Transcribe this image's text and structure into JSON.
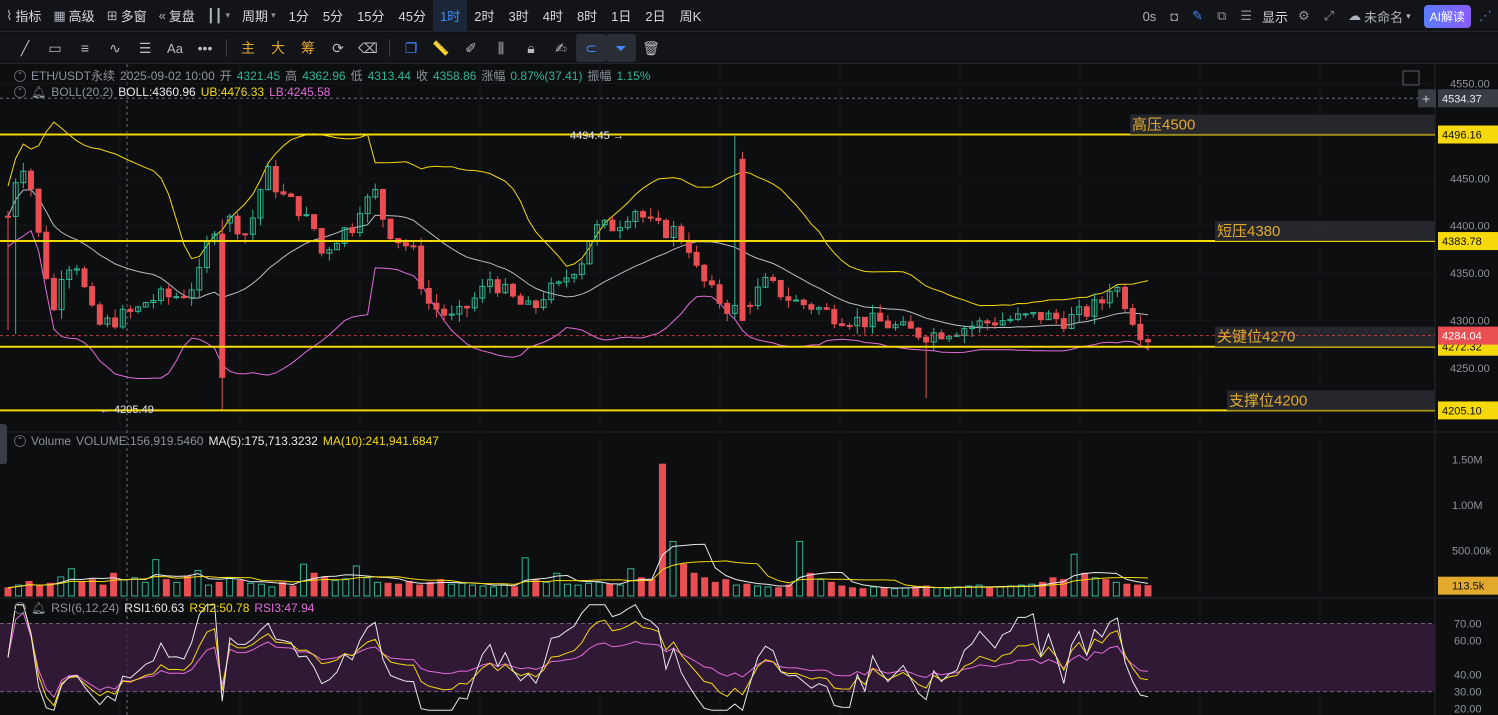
{
  "topbar": {
    "indicators": "指标",
    "advanced": "高级",
    "multi_window": "多窗",
    "replay": "复盘",
    "candle_type_icon": "candlestick-icon",
    "period": "周期",
    "timeframes": [
      "1分",
      "5分",
      "15分",
      "45分",
      "1时",
      "2时",
      "3时",
      "4时",
      "8时",
      "1日",
      "2日",
      "周K"
    ],
    "active_timeframe": "1时",
    "countdown": "0s",
    "display": "显示",
    "layout_name": "未命名",
    "ai_button": "AI解读"
  },
  "legend": {
    "symbol": "ETH/USDT永续",
    "time": "2025-09-02 10:00",
    "open_label": "开",
    "open": "4321.45",
    "high_label": "高",
    "high": "4362.96",
    "low_label": "低",
    "low": "4313.44",
    "close_label": "收",
    "close": "4358.86",
    "change_label": "涨幅",
    "change": "0.87%(37.41)",
    "amplitude_label": "振幅",
    "amplitude": "1.15%",
    "boll_name": "BOLL(20,2)",
    "boll": "BOLL:4360.96",
    "ub": "UB:4476.33",
    "lb": "LB:4245.58",
    "volume_name": "Volume",
    "volume": "VOLUME:156,919.5460",
    "vol_ma5": "MA(5):175,713.3232",
    "vol_ma10": "MA(10):241,941.6847",
    "rsi_name": "RSI(6,12,24)",
    "rsi1": "RSI1:60.63",
    "rsi2": "RSI2:50.78",
    "rsi3": "RSI3:47.94"
  },
  "colors": {
    "up": "#2fb592",
    "down": "#e94e53",
    "level_line": "#f5d90a",
    "boll_mid": "#e8e9ec",
    "boll_ub": "#f5d90a",
    "boll_lb": "#e26bd9",
    "rsi_band": "#3c1d40",
    "last_price_tag": "#e94e53",
    "level_tag": "#f5d90a"
  },
  "chart_data": {
    "type": "candlestick",
    "symbol": "ETH/USDT",
    "interval": "1h",
    "price_ylim": [
      4195,
      4560
    ],
    "price_ticks": [
      4250,
      4300,
      4350,
      4400,
      4450,
      4500,
      4550
    ],
    "price_tick_labels": [
      "4250.00",
      "4300.00",
      "4350.00",
      "4400.00",
      "4450.00",
      "4500.00",
      "4550.00"
    ],
    "volume_ylim": [
      0,
      1650000
    ],
    "volume_ticks": [
      500000,
      1000000,
      1500000
    ],
    "volume_tick_labels": [
      "500.00k",
      "1.00M",
      "1.50M"
    ],
    "rsi_ylim": [
      18,
      82
    ],
    "rsi_ticks": [
      20,
      30,
      40,
      60,
      70
    ],
    "rsi_tick_labels": [
      "20.00",
      "30.00",
      "40.00",
      "60.00",
      "70.00"
    ],
    "rsi_band": [
      30,
      70
    ],
    "candle_count": 150,
    "anchors": [
      [
        0,
        4410
      ],
      [
        2,
        4440
      ],
      [
        6,
        4470
      ],
      [
        10,
        4440
      ],
      [
        14,
        4380
      ],
      [
        20,
        4310
      ],
      [
        24,
        4360
      ],
      [
        30,
        4360
      ],
      [
        36,
        4310
      ],
      [
        40,
        4295
      ],
      [
        46,
        4300
      ],
      [
        50,
        4305
      ],
      [
        56,
        4310
      ],
      [
        60,
        4320
      ],
      [
        66,
        4325
      ],
      [
        72,
        4325
      ],
      [
        78,
        4330
      ],
      [
        84,
        4350
      ],
      [
        88,
        4395
      ],
      [
        94,
        4410
      ],
      [
        100,
        4400
      ],
      [
        104,
        4390
      ],
      [
        108,
        4420
      ],
      [
        112,
        4460
      ],
      [
        117,
        4440
      ],
      [
        120,
        4430
      ],
      [
        126,
        4420
      ],
      [
        130,
        4405
      ],
      [
        134,
        4395
      ],
      [
        136,
        4370
      ],
      [
        142,
        4385
      ],
      [
        146,
        4395
      ],
      [
        150,
        4400
      ],
      [
        152,
        4420
      ],
      [
        158,
        4428
      ],
      [
        160,
        4435
      ],
      [
        163,
        4410
      ],
      [
        166,
        4395
      ],
      [
        170,
        4385
      ],
      [
        176,
        4375
      ],
      [
        182,
        4320
      ],
      [
        188,
        4310
      ],
      [
        194,
        4300
      ],
      [
        200,
        4315
      ],
      [
        206,
        4330
      ],
      [
        210,
        4345
      ],
      [
        216,
        4330
      ],
      [
        222,
        4318
      ],
      [
        228,
        4310
      ],
      [
        234,
        4330
      ],
      [
        240,
        4335
      ],
      [
        244,
        4350
      ],
      [
        250,
        4365
      ],
      [
        254,
        4395
      ],
      [
        258,
        4398
      ],
      [
        264,
        4400
      ],
      [
        268,
        4408
      ],
      [
        272,
        4420
      ],
      [
        276,
        4410
      ],
      [
        280,
        4400
      ],
      [
        286,
        4395
      ],
      [
        290,
        4395
      ],
      [
        296,
        4380
      ],
      [
        300,
        4350
      ],
      [
        306,
        4330
      ],
      [
        312,
        4315
      ],
      [
        318,
        4310
      ],
      [
        324,
        4325
      ],
      [
        330,
        4340
      ],
      [
        336,
        4330
      ],
      [
        342,
        4320
      ],
      [
        350,
        4315
      ],
      [
        360,
        4305
      ],
      [
        370,
        4300
      ],
      [
        380,
        4298
      ],
      [
        390,
        4290
      ],
      [
        400,
        4285
      ],
      [
        410,
        4290
      ],
      [
        420,
        4295
      ],
      [
        430,
        4300
      ],
      [
        440,
        4302
      ],
      [
        450,
        4305
      ],
      [
        460,
        4300
      ],
      [
        470,
        4310
      ],
      [
        476,
        4320
      ],
      [
        480,
        4340
      ],
      [
        484,
        4330
      ],
      [
        488,
        4310
      ],
      [
        492,
        4290
      ],
      [
        496,
        4282
      ]
    ],
    "volume_series": [
      [
        "2",
        90000
      ],
      [
        "3",
        120000
      ],
      [
        "4",
        160000
      ],
      [
        "5",
        110000
      ],
      [
        "6",
        140000
      ],
      [
        "7",
        210000
      ],
      [
        "8",
        300000
      ],
      [
        "9",
        150000
      ],
      [
        "10",
        180000
      ],
      [
        "11",
        120000
      ],
      [
        "12",
        250000
      ],
      [
        "13",
        180000
      ],
      [
        "14",
        200000
      ],
      [
        "15",
        150000
      ],
      [
        "16",
        400000
      ],
      [
        "17",
        180000
      ],
      [
        "18",
        150000
      ],
      [
        "19",
        220000
      ],
      [
        "20",
        280000
      ],
      [
        "21",
        120000
      ],
      [
        "22",
        150000
      ],
      [
        "23",
        200000
      ],
      [
        "24",
        170000
      ],
      [
        "25",
        140000
      ],
      [
        "26",
        130000
      ],
      [
        "27",
        100000
      ],
      [
        "28",
        150000
      ],
      [
        "29",
        110000
      ],
      [
        "30",
        350000
      ],
      [
        "31",
        250000
      ],
      [
        "32",
        210000
      ],
      [
        "33",
        170000
      ],
      [
        "34",
        190000
      ],
      [
        "35",
        330000
      ],
      [
        "36",
        200000
      ],
      [
        "37",
        150000
      ],
      [
        "38",
        140000
      ],
      [
        "39",
        130000
      ],
      [
        "40",
        160000
      ],
      [
        "41",
        120000
      ],
      [
        "42",
        150000
      ],
      [
        "43",
        180000
      ],
      [
        "44",
        130000
      ],
      [
        "45",
        140000
      ],
      [
        "46",
        120000
      ],
      [
        "47",
        110000
      ],
      [
        "48",
        100000
      ],
      [
        "49",
        130000
      ],
      [
        "50",
        100000
      ],
      [
        "51",
        420000
      ],
      [
        "52",
        180000
      ],
      [
        "53",
        150000
      ],
      [
        "54",
        250000
      ],
      [
        "55",
        130000
      ],
      [
        "56",
        120000
      ],
      [
        "57",
        140000
      ],
      [
        "58",
        150000
      ],
      [
        "59",
        130000
      ],
      [
        "60",
        120000
      ],
      [
        "61",
        300000
      ],
      [
        "62",
        200000
      ],
      [
        "63",
        180000
      ],
      [
        "64",
        1450000
      ],
      [
        "65",
        600000
      ],
      [
        "66",
        350000
      ],
      [
        "67",
        250000
      ],
      [
        "68",
        200000
      ],
      [
        "69",
        150000
      ],
      [
        "70",
        180000
      ],
      [
        "71",
        120000
      ],
      [
        "72",
        130000
      ],
      [
        "73",
        110000
      ],
      [
        "74",
        100000
      ],
      [
        "75",
        90000
      ],
      [
        "76",
        120000
      ],
      [
        "77",
        600000
      ],
      [
        "78",
        250000
      ],
      [
        "79",
        180000
      ],
      [
        "80",
        150000
      ],
      [
        "81",
        110000
      ],
      [
        "82",
        90000
      ],
      [
        "83",
        80000
      ],
      [
        "84",
        100000
      ],
      [
        "85",
        90000
      ],
      [
        "86",
        80000
      ],
      [
        "87",
        90000
      ],
      [
        "88",
        100000
      ],
      [
        "89",
        110000
      ],
      [
        "90",
        90000
      ],
      [
        "91",
        80000
      ],
      [
        "92",
        100000
      ],
      [
        "93",
        110000
      ],
      [
        "94",
        120000
      ],
      [
        "95",
        90000
      ],
      [
        "96",
        100000
      ],
      [
        "97",
        110000
      ],
      [
        "98",
        120000
      ],
      [
        "99",
        130000
      ],
      [
        "100",
        150000
      ],
      [
        "101",
        200000
      ],
      [
        "102",
        180000
      ],
      [
        "103",
        460000
      ],
      [
        "104",
        250000
      ],
      [
        "105",
        200000
      ],
      [
        "106",
        180000
      ],
      [
        "107",
        150000
      ],
      [
        "108",
        130000
      ],
      [
        "109",
        120000
      ],
      [
        "110",
        113500
      ]
    ],
    "levels": [
      {
        "price": 4496.16,
        "label": "高压4500",
        "tag": "4496.16"
      },
      {
        "price": 4383.78,
        "label": "短压4380",
        "tag": "4383.78"
      },
      {
        "price": 4272.32,
        "label": "关键位4270",
        "tag": "4272.32"
      },
      {
        "price": 4205.1,
        "label": "支撑位4200",
        "tag": "4205.10"
      }
    ],
    "crosshair_price": "4534.37",
    "last_price": "4284.04",
    "last_volume": "113.5k",
    "high_marker": "4494.45",
    "low_marker": "4205.49"
  }
}
